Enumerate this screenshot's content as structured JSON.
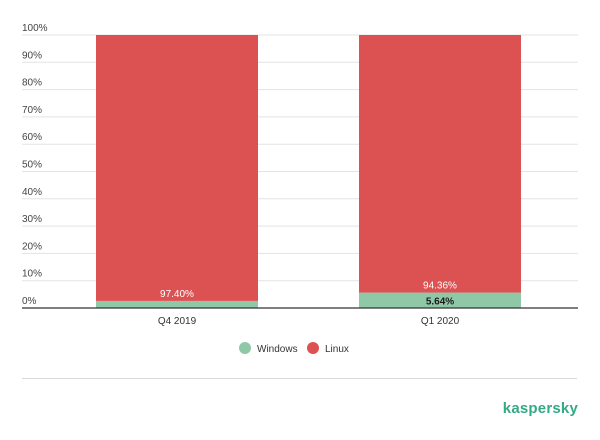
{
  "chart_data": {
    "type": "bar",
    "stacked": true,
    "categories": [
      "Q4 2019",
      "Q1 2020"
    ],
    "series": [
      {
        "name": "Windows",
        "values": [
          2.6,
          5.64
        ],
        "color": "#8fc8a7"
      },
      {
        "name": "Linux",
        "values": [
          97.4,
          94.36
        ],
        "color": "#dc5152"
      }
    ],
    "data_labels": [
      {
        "category": "Q4 2019",
        "labels": [
          "97.40%"
        ]
      },
      {
        "category": "Q1 2020",
        "labels": [
          "5.64%",
          "94.36%"
        ]
      }
    ],
    "ylim": [
      0,
      100
    ],
    "yticks": [
      "0%",
      "10%",
      "20%",
      "30%",
      "40%",
      "50%",
      "60%",
      "70%",
      "80%",
      "90%",
      "100%"
    ],
    "grid": true,
    "legend_position": "bottom-center",
    "title": "",
    "xlabel": "",
    "ylabel": ""
  },
  "brand": {
    "logo_text": "kaspersky"
  }
}
